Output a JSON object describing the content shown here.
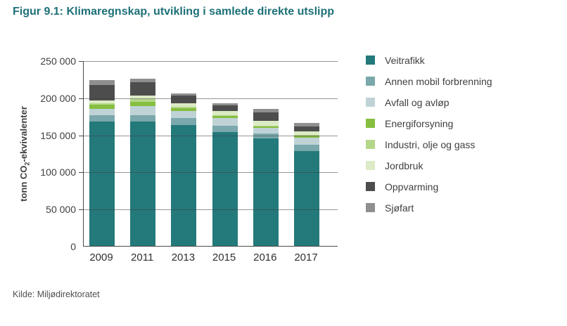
{
  "figure": {
    "title": "Figur 9.1: Klimaregnskap, utvikling i samlede direkte utslipp",
    "source": "Kilde: Miljødirektoratet",
    "title_color": "#1d7078"
  },
  "chart_data": {
    "type": "bar",
    "stacked": true,
    "categories": [
      "2009",
      "2011",
      "2013",
      "2015",
      "2016",
      "2017"
    ],
    "series": [
      {
        "name": "Veitrafikk",
        "color": "#24797b",
        "values": [
          168000,
          167500,
          163000,
          153000,
          145000,
          127500
        ]
      },
      {
        "name": "Annen mobil forbrenning",
        "color": "#7aa8ac",
        "values": [
          8500,
          9000,
          9500,
          8500,
          6500,
          9000
        ]
      },
      {
        "name": "Avfall og avløp",
        "color": "#bfd3d6",
        "values": [
          8500,
          11500,
          9500,
          11000,
          7500,
          9500
        ]
      },
      {
        "name": "Energiforsyning",
        "color": "#86be40",
        "values": [
          5500,
          6500,
          4000,
          2500,
          2000,
          3000
        ]
      },
      {
        "name": "Industri, olje og gass",
        "color": "#b5d78a",
        "values": [
          2000,
          3000,
          1500,
          1000,
          1000,
          1000
        ]
      },
      {
        "name": "Jordbruk",
        "color": "#dcebc6",
        "values": [
          4000,
          5500,
          5000,
          5500,
          6500,
          4500
        ]
      },
      {
        "name": "Oppvarming",
        "color": "#4d4d4d",
        "values": [
          20000,
          17500,
          10500,
          8000,
          11500,
          6500
        ]
      },
      {
        "name": "Sjøfart",
        "color": "#8f8f8f",
        "values": [
          7000,
          5000,
          3000,
          2500,
          5000,
          4500
        ]
      }
    ],
    "totals": [
      223500,
      225500,
      206000,
      192000,
      185000,
      165500
    ],
    "ylabel": "tonn CO2-ekvivalenter",
    "ylabel_parts": {
      "pre": "tonn CO",
      "sub": "2",
      "post": "-ekvivalenter"
    },
    "ylim": [
      0,
      250000
    ],
    "ytick_step": 50000,
    "ytick_labels": [
      "0",
      "50 000",
      "100 000",
      "150 000",
      "200 000",
      "250 000"
    ],
    "legend_position": "right",
    "grid": true
  }
}
